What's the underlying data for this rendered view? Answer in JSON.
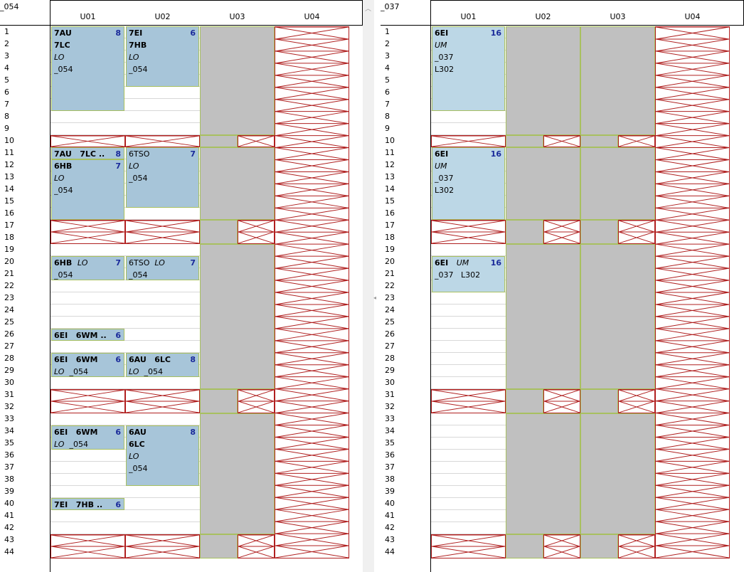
{
  "rooms": [
    {
      "title": "_054",
      "columns": [
        "U01",
        "U02",
        "U03",
        "U04"
      ],
      "lessons": [
        {
          "col": 0,
          "start": 1,
          "span": 7,
          "lines": [
            [
              "7AU",
              "c"
            ],
            [
              "7LC",
              "c"
            ],
            [
              "LO",
              "s"
            ],
            [
              "_054",
              "r"
            ]
          ],
          "count": "8"
        },
        {
          "col": 1,
          "start": 1,
          "span": 5,
          "lines": [
            [
              "7EI",
              "c"
            ],
            [
              "7HB",
              "c"
            ],
            [
              "LO",
              "s"
            ],
            [
              "_054",
              "r"
            ]
          ],
          "count": "6"
        },
        {
          "col": 0,
          "start": 11,
          "span": 1,
          "lines": [
            [
              "7AU   7LC ..",
              "c"
            ]
          ],
          "count": "8"
        },
        {
          "col": 0,
          "start": 12,
          "span": 5,
          "lines": [
            [
              "6HB",
              "c"
            ],
            [
              "LO",
              "s"
            ],
            [
              "_054",
              "r"
            ]
          ],
          "count": "7"
        },
        {
          "col": 1,
          "start": 11,
          "span": 5,
          "lines": [
            [
              "6TSO",
              "r"
            ],
            [
              "LO",
              "s"
            ],
            [
              "_054",
              "r"
            ]
          ],
          "count": "7"
        },
        {
          "col": 0,
          "start": 20,
          "span": 2,
          "lines": [
            [
              "6HB  ",
              "c",
              "LO",
              "s"
            ],
            [
              "_054",
              "r"
            ]
          ],
          "count": "7"
        },
        {
          "col": 1,
          "start": 20,
          "span": 2,
          "lines": [
            [
              "6TSO  ",
              "r",
              "LO",
              "s"
            ],
            [
              "_054",
              "r"
            ]
          ],
          "count": "7"
        },
        {
          "col": 0,
          "start": 26,
          "span": 1,
          "lines": [
            [
              "6EI   6WM ..",
              "c"
            ]
          ],
          "count": "6"
        },
        {
          "col": 0,
          "start": 28,
          "span": 2,
          "lines": [
            [
              "6EI   6WM",
              "c"
            ],
            [
              "LO  ",
              "s",
              "_054",
              "r"
            ]
          ],
          "count": "6"
        },
        {
          "col": 1,
          "start": 28,
          "span": 2,
          "lines": [
            [
              "6AU   6LC",
              "c"
            ],
            [
              "LO  ",
              "s",
              "_054",
              "r"
            ]
          ],
          "count": "8"
        },
        {
          "col": 0,
          "start": 34,
          "span": 2,
          "lines": [
            [
              "6EI   6WM",
              "c"
            ],
            [
              "LO  ",
              "s",
              "_054",
              "r"
            ]
          ],
          "count": "6"
        },
        {
          "col": 1,
          "start": 34,
          "span": 5,
          "lines": [
            [
              "6AU",
              "c"
            ],
            [
              "6LC",
              "c"
            ],
            [
              "LO",
              "s"
            ],
            [
              "_054",
              "r"
            ]
          ],
          "count": "8"
        },
        {
          "col": 0,
          "start": 40,
          "span": 1,
          "lines": [
            [
              "7EI   7HB ..",
              "c"
            ]
          ],
          "count": "6"
        }
      ]
    },
    {
      "title": "_037",
      "columns": [
        "U01",
        "U02",
        "U03",
        "U04"
      ],
      "lessons": [
        {
          "col": 0,
          "start": 1,
          "span": 7,
          "lines": [
            [
              "6EI",
              "c"
            ],
            [
              "UM",
              "s"
            ],
            [
              "_037",
              "r"
            ],
            [
              "L302",
              "r"
            ]
          ],
          "count": "16"
        },
        {
          "col": 0,
          "start": 11,
          "span": 6,
          "lines": [
            [
              "6EI",
              "c"
            ],
            [
              "UM",
              "s"
            ],
            [
              "_037",
              "r"
            ],
            [
              "L302",
              "r"
            ]
          ],
          "count": "16"
        },
        {
          "col": 0,
          "start": 20,
          "span": 3,
          "lines": [
            [
              "6EI   ",
              "c",
              "UM",
              "s"
            ],
            [
              "_037   L302",
              "r"
            ]
          ],
          "count": "16"
        }
      ]
    }
  ],
  "row_labels": [
    "1",
    "2",
    "3",
    "4",
    "5",
    "6",
    "7",
    "8",
    "9",
    "10",
    "11",
    "12",
    "13",
    "14",
    "15",
    "16",
    "17",
    "18",
    "19",
    "20",
    "21",
    "22",
    "23",
    "24",
    "25",
    "26",
    "27",
    "28",
    "29",
    "30",
    "31",
    "32",
    "33",
    "34",
    "35",
    "36",
    "37",
    "38",
    "39",
    "40",
    "41",
    "42",
    "43",
    "44"
  ],
  "colors": {
    "lesson": "#a7c5d9",
    "lesson_light": "#bcd7e6",
    "unavailable": "#c0c0c0",
    "blocked_cross": "#b02020",
    "lesson_border": "#a8c060",
    "count_text": "#1a2a9a"
  }
}
